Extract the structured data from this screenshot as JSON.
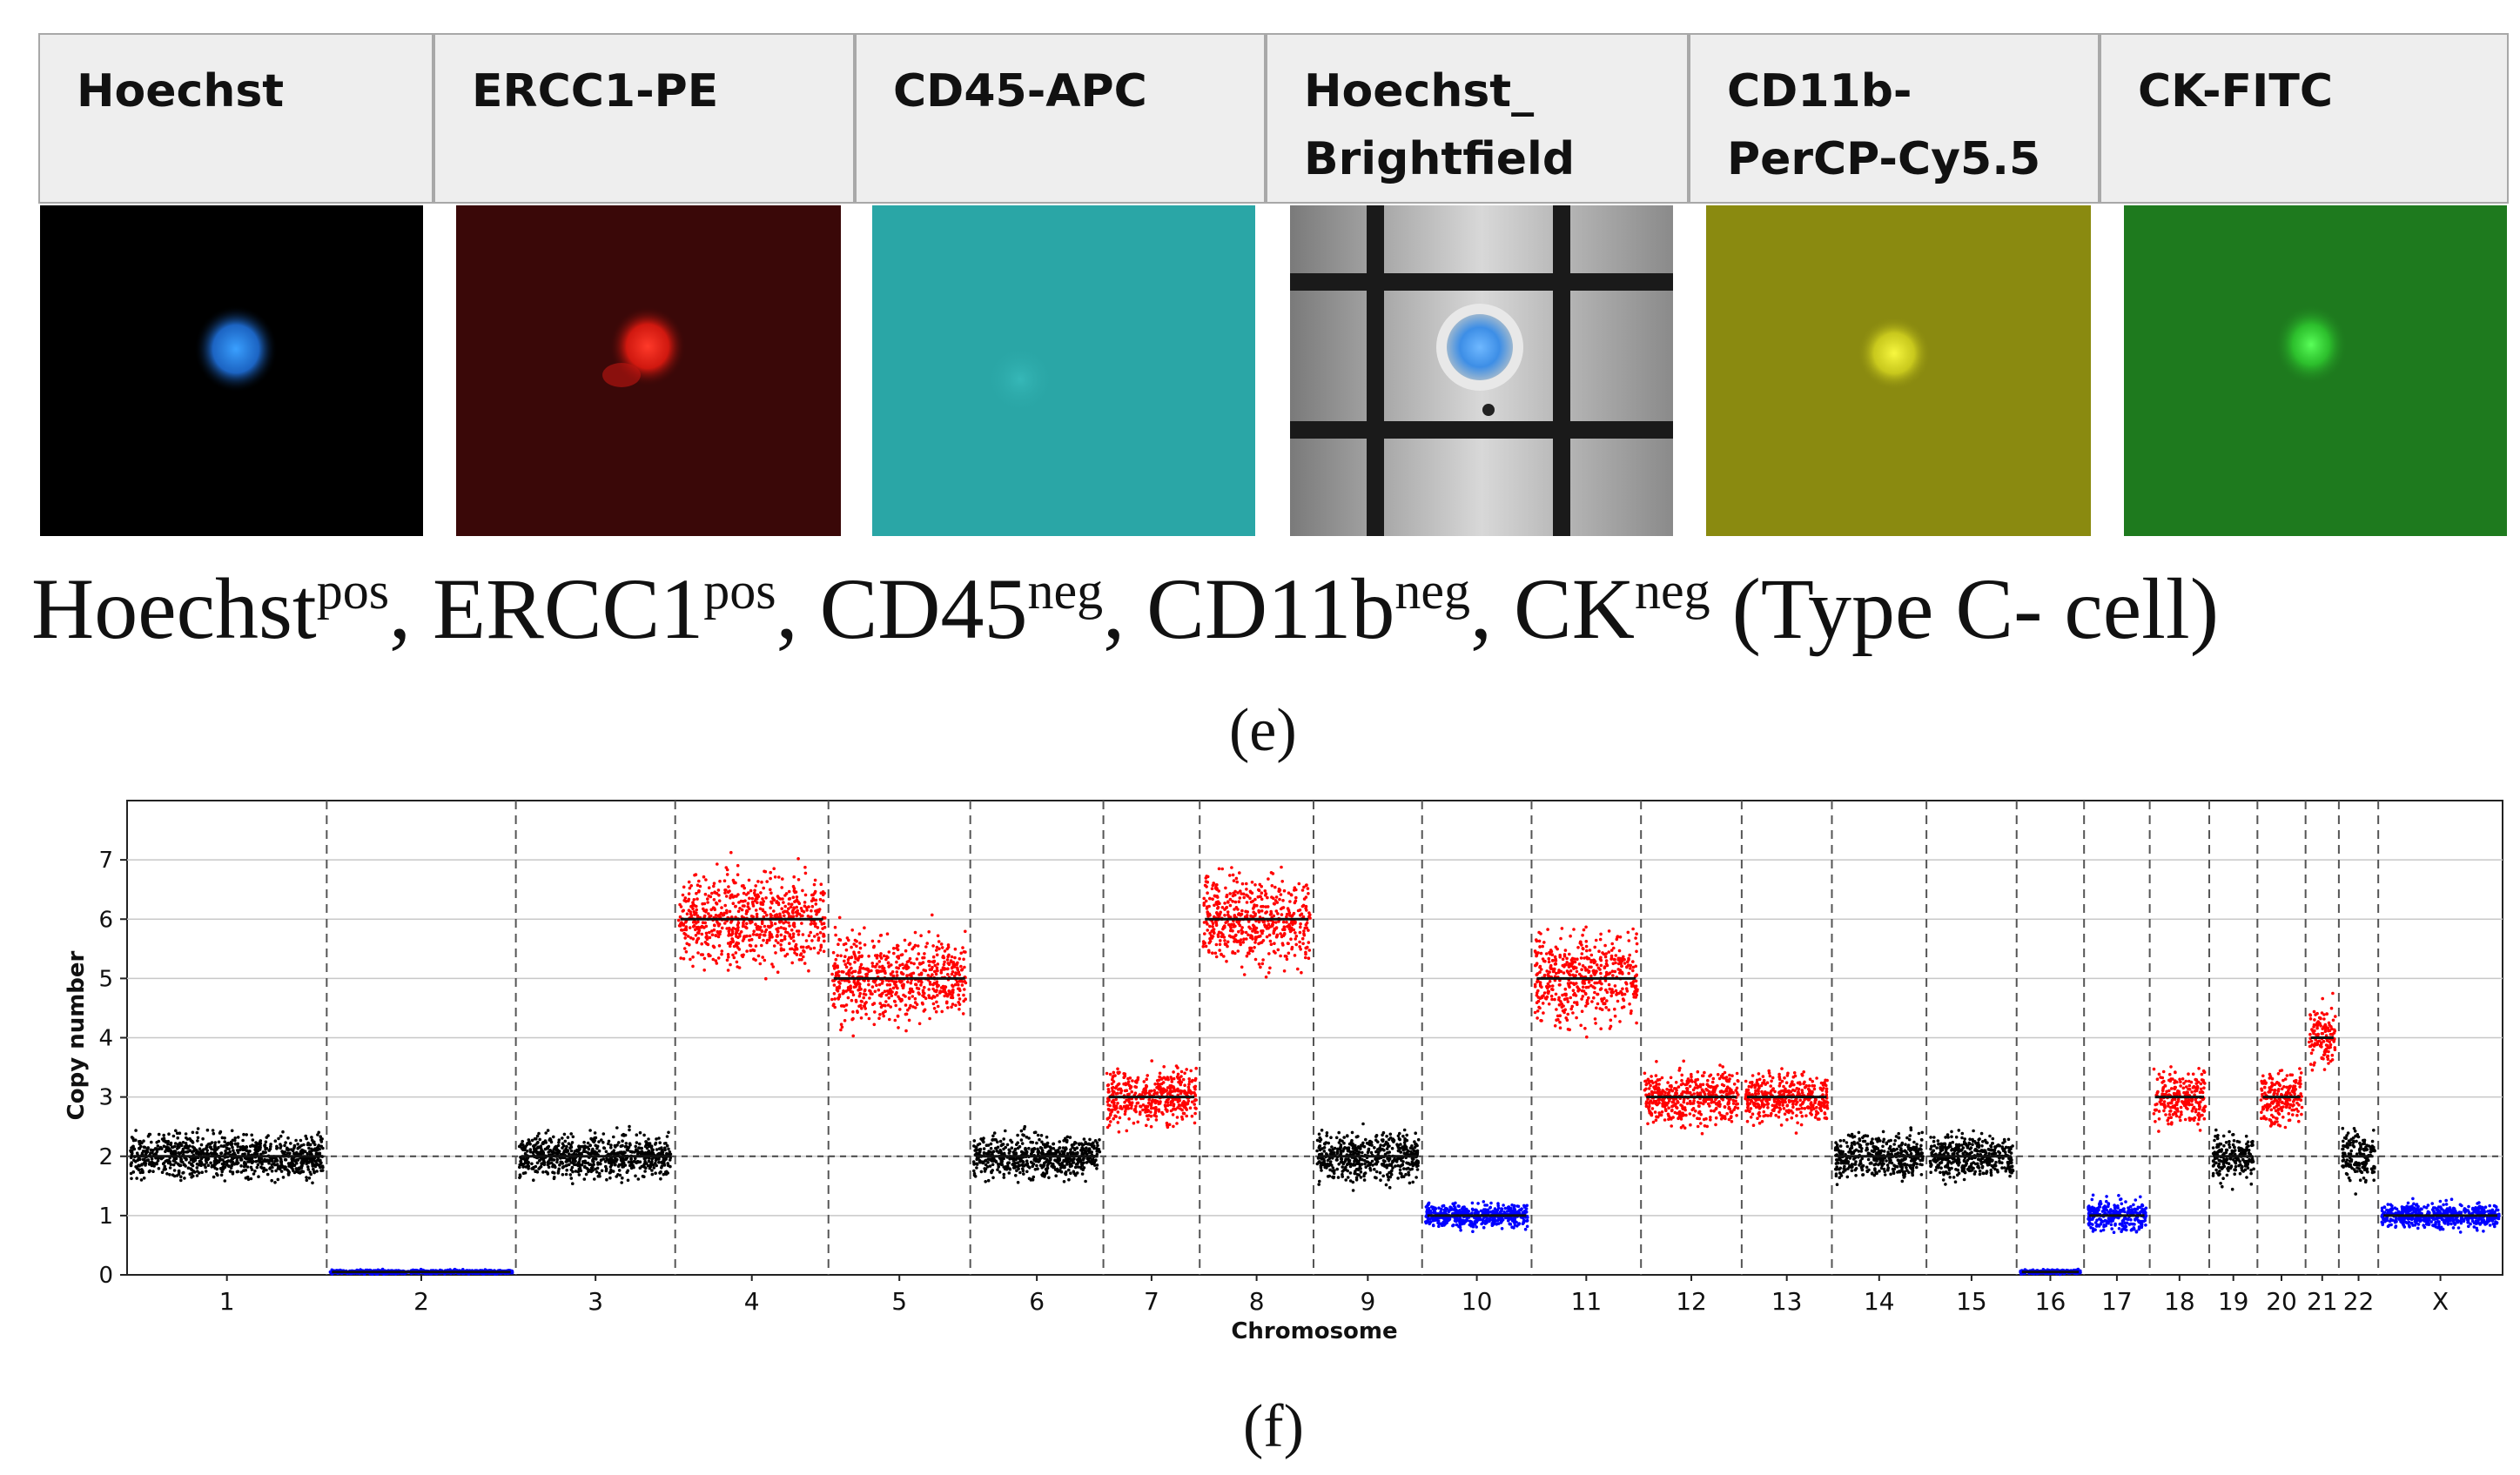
{
  "panel_e": {
    "headers": [
      "Hoechst",
      "ERCC1-PE",
      "CD45-APC",
      "Hoechst_\nBrightfield",
      "CD11b-\nPerCP-Cy5.5",
      "CK-FITC"
    ],
    "caption": {
      "hoechst": "Hoechst",
      "hoechst_sup": "pos",
      "ercc1": ", ERCC1",
      "ercc1_sup": "pos",
      "cd45": ", CD45",
      "cd45_sup": "neg",
      "cd11b": ", CD11b",
      "cd11b_sup": "neg",
      "ck": ", CK",
      "ck_sup": "neg",
      "tail": " (Type C- cell)"
    },
    "label": "(e)",
    "colors": {
      "hoechst_bg": "#000000",
      "ercc1_bg": "#3a0808",
      "cd45_bg": "#2aa6a6",
      "cd11b_bg": "#8a8a10",
      "ck_bg": "#1e7a1e",
      "nucleus_blue": "#2f8cff",
      "ercc1_red": "#ff2a20",
      "cd11b_yellow": "#f2f230",
      "ck_green": "#40ff40"
    }
  },
  "panel_f": {
    "label": "(f)"
  },
  "chart_data": {
    "type": "scatter",
    "title": "",
    "xlabel": "Chromosome",
    "ylabel": "Copy number",
    "ylim": [
      0,
      8
    ],
    "yticks": [
      0,
      1,
      2,
      3,
      4,
      5,
      6,
      7
    ],
    "grid": true,
    "baseline": 2,
    "colors": {
      "neutral": "#000000",
      "gain": "#ff0000",
      "loss": "#0000ff"
    },
    "chromosomes": [
      {
        "name": "1",
        "copy_number": 2,
        "status": "neutral",
        "spread": 0.35
      },
      {
        "name": "2",
        "copy_number": 0.05,
        "status": "loss",
        "spread": 0.03
      },
      {
        "name": "3",
        "copy_number": 2,
        "status": "neutral",
        "spread": 0.35
      },
      {
        "name": "4",
        "copy_number": 6,
        "status": "gain",
        "spread": 0.75
      },
      {
        "name": "5",
        "copy_number": 5,
        "status": "gain",
        "spread": 0.7
      },
      {
        "name": "6",
        "copy_number": 2,
        "status": "neutral",
        "spread": 0.35
      },
      {
        "name": "7",
        "copy_number": 3,
        "status": "gain",
        "spread": 0.45
      },
      {
        "name": "8",
        "copy_number": 6,
        "status": "gain",
        "spread": 0.75
      },
      {
        "name": "9",
        "copy_number": 2,
        "status": "neutral",
        "spread": 0.4
      },
      {
        "name": "10",
        "copy_number": 1,
        "status": "loss",
        "spread": 0.2
      },
      {
        "name": "11",
        "copy_number": 5,
        "status": "gain",
        "spread": 0.75
      },
      {
        "name": "12",
        "copy_number": 3,
        "status": "gain",
        "spread": 0.45
      },
      {
        "name": "13",
        "copy_number": 3,
        "status": "gain",
        "spread": 0.4
      },
      {
        "name": "14",
        "copy_number": 2,
        "status": "neutral",
        "spread": 0.35
      },
      {
        "name": "15",
        "copy_number": 2,
        "status": "neutral",
        "spread": 0.35
      },
      {
        "name": "16",
        "copy_number": 0.05,
        "status": "loss",
        "spread": 0.03
      },
      {
        "name": "17",
        "copy_number": 1,
        "status": "loss",
        "spread": 0.25
      },
      {
        "name": "18",
        "copy_number": 3,
        "status": "gain",
        "spread": 0.45
      },
      {
        "name": "19",
        "copy_number": 2,
        "status": "neutral",
        "spread": 0.4
      },
      {
        "name": "20",
        "copy_number": 3,
        "status": "gain",
        "spread": 0.45
      },
      {
        "name": "21",
        "copy_number": 4,
        "status": "gain",
        "spread": 0.5
      },
      {
        "name": "22",
        "copy_number": 2,
        "status": "neutral",
        "spread": 0.4
      },
      {
        "name": "X",
        "copy_number": 1,
        "status": "loss",
        "spread": 0.2
      }
    ]
  }
}
